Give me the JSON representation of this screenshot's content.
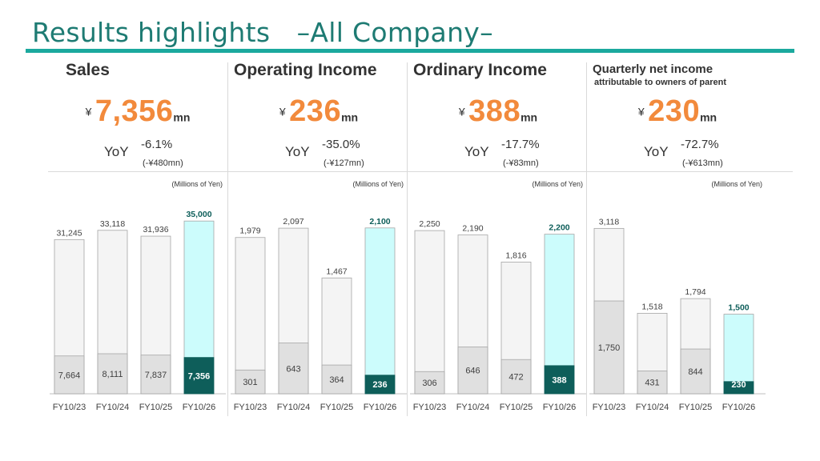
{
  "title": "Results highlights　–All Company–",
  "colors": {
    "title": "#1e7b73",
    "rule": "#1ba99e",
    "highlight": "#f28a3c",
    "bar_total": "#f4f4f4",
    "bar_total_border": "#a6a6a6",
    "bar_h1": "#e0e0e0",
    "forecast_total": "#ccfcfc",
    "forecast_h1": "#0e5e5a"
  },
  "panels": [
    {
      "title": "Sales",
      "subtitle": "",
      "yen": "¥",
      "value": "7,356",
      "unit": "mn",
      "yoy_label": "YoY",
      "yoy_pct": "-6.1%",
      "yoy_amount": "(-¥480mn)",
      "units_note": "(Millions of Yen)"
    },
    {
      "title": "Operating Income",
      "subtitle": "",
      "yen": "¥",
      "value": "236",
      "unit": "mn",
      "yoy_label": "YoY",
      "yoy_pct": "-35.0%",
      "yoy_amount": "(-¥127mn)",
      "units_note": "(Millions of Yen)"
    },
    {
      "title": "Ordinary Income",
      "subtitle": "",
      "yen": "¥",
      "value": "388",
      "unit": "mn",
      "yoy_label": "YoY",
      "yoy_pct": "-17.7%",
      "yoy_amount": "(-¥83mn)",
      "units_note": "(Millions of Yen)"
    },
    {
      "title": "Quarterly net income",
      "subtitle": "attributable to owners of parent",
      "yen": "¥",
      "value": "230",
      "unit": "mn",
      "yoy_label": "YoY",
      "yoy_pct": "-72.7%",
      "yoy_amount": "(-¥613mn)",
      "units_note": "(Millions of Yen)"
    }
  ],
  "chart_data": [
    {
      "type": "bar",
      "title": "Sales",
      "categories": [
        "FY10/23",
        "FY10/24",
        "FY10/25",
        "FY10/26"
      ],
      "full_year": [
        31245,
        33118,
        31936,
        35000
      ],
      "first_half": [
        7664,
        8111,
        7837,
        7356
      ],
      "full_year_labels": [
        "31,245",
        "33,118",
        "31,936",
        "35,000"
      ],
      "first_half_labels": [
        "7,664",
        "8,111",
        "7,837",
        "7,356"
      ],
      "ymax": 36000,
      "units": "(Millions of Yen)"
    },
    {
      "type": "bar",
      "title": "Operating Income",
      "categories": [
        "FY10/23",
        "FY10/24",
        "FY10/25",
        "FY10/26"
      ],
      "full_year": [
        1979,
        2097,
        1467,
        2100
      ],
      "first_half": [
        301,
        643,
        364,
        236
      ],
      "full_year_labels": [
        "1,979",
        "2,097",
        "1,467",
        "2,100"
      ],
      "first_half_labels": [
        "301",
        "643",
        "364",
        "236"
      ],
      "ymax": 2250,
      "units": "(Millions of Yen)"
    },
    {
      "type": "bar",
      "title": "Ordinary Income",
      "categories": [
        "FY10/23",
        "FY10/24",
        "FY10/25",
        "FY10/26"
      ],
      "full_year": [
        2250,
        2190,
        1816,
        2200
      ],
      "first_half": [
        306,
        646,
        472,
        388
      ],
      "full_year_labels": [
        "2,250",
        "2,190",
        "1,816",
        "2,200"
      ],
      "first_half_labels": [
        "306",
        "646",
        "472",
        "388"
      ],
      "ymax": 2450,
      "units": "(Millions of Yen)"
    },
    {
      "type": "bar",
      "title": "Quarterly net income attributable to owners of parent",
      "categories": [
        "FY10/23",
        "FY10/24",
        "FY10/25",
        "FY10/26"
      ],
      "full_year": [
        3118,
        1518,
        1794,
        1500
      ],
      "first_half": [
        1750,
        431,
        844,
        230
      ],
      "full_year_labels": [
        "3,118",
        "1,518",
        "1,794",
        "1,500"
      ],
      "first_half_labels": [
        "1,750",
        "431",
        "844",
        "230"
      ],
      "ymax": 3350,
      "units": "(Millions of Yen)"
    }
  ]
}
